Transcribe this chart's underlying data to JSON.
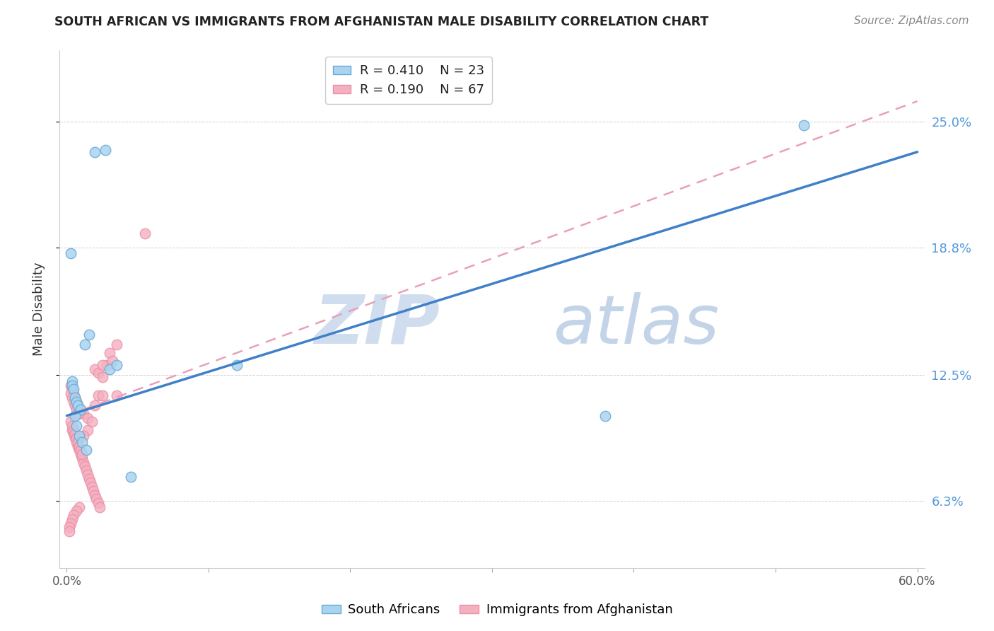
{
  "title": "SOUTH AFRICAN VS IMMIGRANTS FROM AFGHANISTAN MALE DISABILITY CORRELATION CHART",
  "source": "Source: ZipAtlas.com",
  "ylabel": "Male Disability",
  "xlim": [
    0.0,
    0.6
  ],
  "ylim": [
    0.03,
    0.285
  ],
  "y_ticks": [
    0.063,
    0.125,
    0.188,
    0.25
  ],
  "y_tick_labels": [
    "6.3%",
    "12.5%",
    "18.8%",
    "25.0%"
  ],
  "x_ticks": [
    0.0,
    0.1,
    0.2,
    0.3,
    0.4,
    0.5,
    0.6
  ],
  "x_tick_labels_show": [
    "0.0%",
    "",
    "",
    "",
    "",
    "",
    "60.0%"
  ],
  "legend_r1": "R = 0.410",
  "legend_n1": "N = 23",
  "legend_r2": "R = 0.190",
  "legend_n2": "N = 67",
  "color_blue_fill": "#A8D4F0",
  "color_blue_edge": "#6AAAD4",
  "color_pink_fill": "#F5B0C0",
  "color_pink_edge": "#E890A8",
  "line_blue_color": "#4080C8",
  "line_pink_color": "#E87898",
  "line_dashed_color": "#E8A0B8",
  "grid_color": "#CCCCCC",
  "watermark_zip_color": "#D0DDEF",
  "watermark_atlas_color": "#C4D4E8",
  "sa_line_y0": 0.105,
  "sa_line_y1": 0.235,
  "af_line_y0": 0.105,
  "af_line_y1": 0.26,
  "scatter_size": 110,
  "sa_x": [
    0.02,
    0.027,
    0.003,
    0.004,
    0.004,
    0.005,
    0.006,
    0.007,
    0.008,
    0.01,
    0.013,
    0.016,
    0.006,
    0.007,
    0.009,
    0.011,
    0.014,
    0.03,
    0.12,
    0.38,
    0.52,
    0.035,
    0.045
  ],
  "sa_y": [
    0.235,
    0.236,
    0.185,
    0.122,
    0.12,
    0.118,
    0.114,
    0.112,
    0.11,
    0.108,
    0.14,
    0.145,
    0.105,
    0.1,
    0.095,
    0.092,
    0.088,
    0.128,
    0.13,
    0.105,
    0.248,
    0.13,
    0.075
  ],
  "af_x": [
    0.003,
    0.004,
    0.005,
    0.006,
    0.007,
    0.008,
    0.01,
    0.012,
    0.015,
    0.018,
    0.02,
    0.022,
    0.025,
    0.028,
    0.03,
    0.032,
    0.035,
    0.004,
    0.005,
    0.006,
    0.007,
    0.008,
    0.009,
    0.01,
    0.011,
    0.012,
    0.013,
    0.014,
    0.015,
    0.016,
    0.017,
    0.018,
    0.019,
    0.02,
    0.021,
    0.022,
    0.023,
    0.003,
    0.004,
    0.005,
    0.006,
    0.007,
    0.008,
    0.003,
    0.004,
    0.005,
    0.006,
    0.007,
    0.008,
    0.009,
    0.01,
    0.011,
    0.025,
    0.022,
    0.055,
    0.035,
    0.025,
    0.02,
    0.015,
    0.012,
    0.009,
    0.007,
    0.005,
    0.004,
    0.003,
    0.002,
    0.002
  ],
  "af_y": [
    0.12,
    0.118,
    0.116,
    0.114,
    0.112,
    0.11,
    0.108,
    0.106,
    0.104,
    0.102,
    0.128,
    0.126,
    0.124,
    0.13,
    0.136,
    0.132,
    0.14,
    0.098,
    0.096,
    0.094,
    0.092,
    0.09,
    0.088,
    0.086,
    0.084,
    0.082,
    0.08,
    0.078,
    0.076,
    0.074,
    0.072,
    0.07,
    0.068,
    0.066,
    0.064,
    0.062,
    0.06,
    0.116,
    0.114,
    0.112,
    0.11,
    0.108,
    0.106,
    0.102,
    0.1,
    0.098,
    0.096,
    0.094,
    0.092,
    0.09,
    0.088,
    0.086,
    0.13,
    0.115,
    0.195,
    0.115,
    0.115,
    0.11,
    0.098,
    0.095,
    0.06,
    0.058,
    0.056,
    0.054,
    0.052,
    0.05,
    0.048
  ]
}
